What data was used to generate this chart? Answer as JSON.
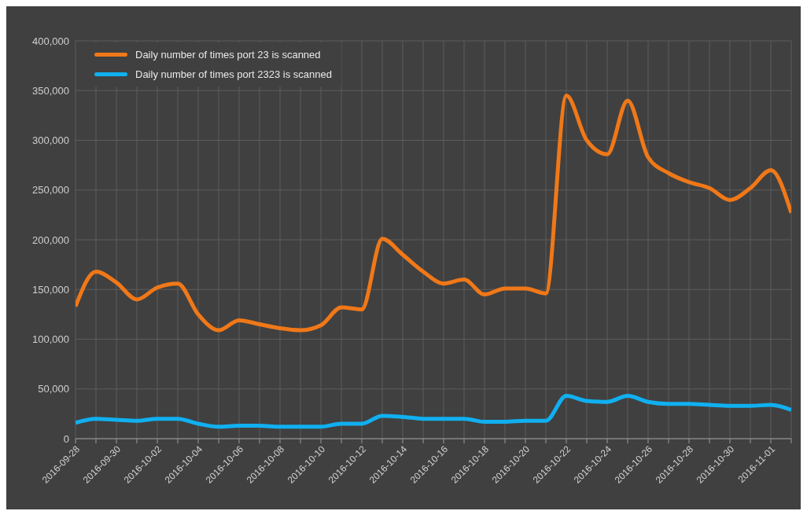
{
  "chart_data": {
    "type": "line",
    "categories": [
      "2016-09-28",
      null,
      "2016-09-30",
      null,
      "2016-10-02",
      null,
      "2016-10-04",
      null,
      "2016-10-06",
      null,
      "2016-10-08",
      null,
      "2016-10-10",
      null,
      "2016-10-12",
      null,
      "2016-10-14",
      null,
      "2016-10-16",
      null,
      "2016-10-18",
      null,
      "2016-10-20",
      null,
      "2016-10-22",
      null,
      "2016-10-24",
      null,
      "2016-10-26",
      null,
      "2016-10-28",
      null,
      "2016-10-30",
      null,
      "2016-11-01",
      null
    ],
    "series": [
      {
        "name": "Daily number of times port 23 is scanned",
        "color": "#f07818",
        "values": [
          133000,
          168000,
          157000,
          140000,
          152000,
          156000,
          125000,
          109000,
          119000,
          115000,
          111000,
          109000,
          114000,
          132000,
          130000,
          201000,
          185000,
          168000,
          156000,
          160000,
          145000,
          151000,
          151000,
          146000,
          345000,
          300000,
          286000,
          340000,
          283000,
          267000,
          258000,
          252000,
          240000,
          252000,
          270000,
          227000
        ]
      },
      {
        "name": "Daily number of times port 2323 is scanned",
        "color": "#10b0f0",
        "values": [
          16000,
          20000,
          19000,
          18000,
          20000,
          20000,
          15000,
          12000,
          13000,
          13000,
          12000,
          12000,
          12000,
          15000,
          15000,
          23000,
          22000,
          20000,
          20000,
          20000,
          17000,
          17000,
          18000,
          18000,
          43000,
          38000,
          37000,
          43000,
          37000,
          35000,
          35000,
          34000,
          33000,
          33000,
          34000,
          29000
        ]
      }
    ],
    "ylim": [
      0,
      400000
    ],
    "yticks": [
      0,
      {
        "value": 50000,
        "label": "50,000"
      },
      {
        "value": 100000,
        "label": "100,000"
      },
      {
        "value": 150000,
        "label": "150,000"
      },
      {
        "value": 200000,
        "label": "200,000"
      },
      {
        "value": 250000,
        "label": "250,000"
      },
      {
        "value": 300000,
        "label": "300,000"
      },
      {
        "value": 350000,
        "label": "350,000"
      },
      {
        "value": 400000,
        "label": "400,000"
      }
    ],
    "grid": true,
    "legend": "top left",
    "marker": "none",
    "line_style": "solid"
  }
}
